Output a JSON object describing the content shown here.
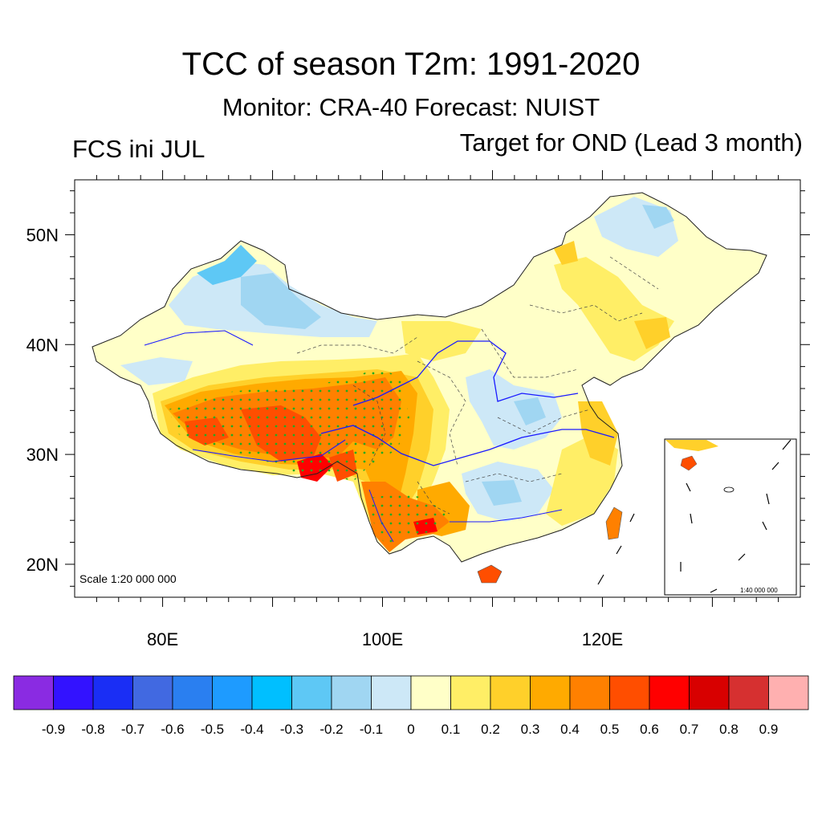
{
  "title": "TCC of season T2m: 1991-2020",
  "subtitle": "Monitor: CRA-40   Forecast: NUIST",
  "left_label": "FCS ini JUL",
  "right_label": "Target for OND (Lead 3 month)",
  "map": {
    "lat_labels": [
      "50N",
      "40N",
      "30N",
      "20N"
    ],
    "lat_values": [
      50,
      40,
      30,
      20
    ],
    "lon_labels": [
      "80E",
      "100E",
      "120E"
    ],
    "lon_values": [
      80,
      100,
      120
    ],
    "scale_text": "Scale 1:20 000 000",
    "inset_scale_text": "1:40 000 000"
  },
  "colorbar": {
    "colors": [
      "#8a2be2",
      "#3312ff",
      "#1a2ef5",
      "#4169e1",
      "#2a7ff0",
      "#1e9bff",
      "#00bfff",
      "#5ec8f5",
      "#a0d6f2",
      "#cde8f7",
      "#ffffc8",
      "#ffee66",
      "#ffd02a",
      "#ffaa00",
      "#ff8000",
      "#ff4e00",
      "#ff0000",
      "#d80000",
      "#d63030",
      "#ffb0b0"
    ],
    "labels": [
      "-0.9",
      "-0.8",
      "-0.7",
      "-0.6",
      "-0.5",
      "-0.4",
      "-0.3",
      "-0.2",
      "-0.1",
      "0",
      "0.1",
      "0.2",
      "0.3",
      "0.4",
      "0.5",
      "0.6",
      "0.7",
      "0.8",
      "0.9"
    ]
  }
}
